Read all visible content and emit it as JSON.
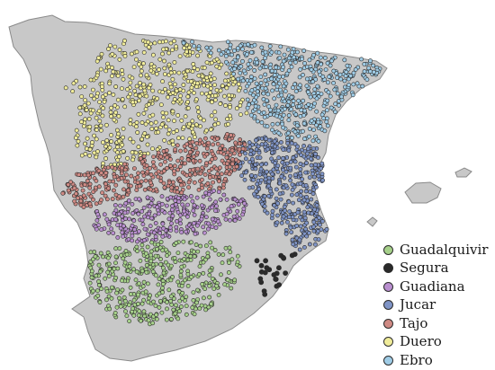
{
  "map": {
    "land_color": "#c8c8c8",
    "coast_color": "#8a8a8a",
    "point_outline": "#2a2a2a"
  },
  "legend": {
    "items": [
      {
        "label": "Guadalquivir",
        "color": "#a6d08a"
      },
      {
        "label": "Segura",
        "color": "#2a2a2a"
      },
      {
        "label": "Guadiana",
        "color": "#b98fcf"
      },
      {
        "label": "Jucar",
        "color": "#7f94c6"
      },
      {
        "label": "Tajo",
        "color": "#cf8a84"
      },
      {
        "label": "Duero",
        "color": "#f0ec9a"
      },
      {
        "label": "Ebro",
        "color": "#9fcce6"
      }
    ]
  }
}
